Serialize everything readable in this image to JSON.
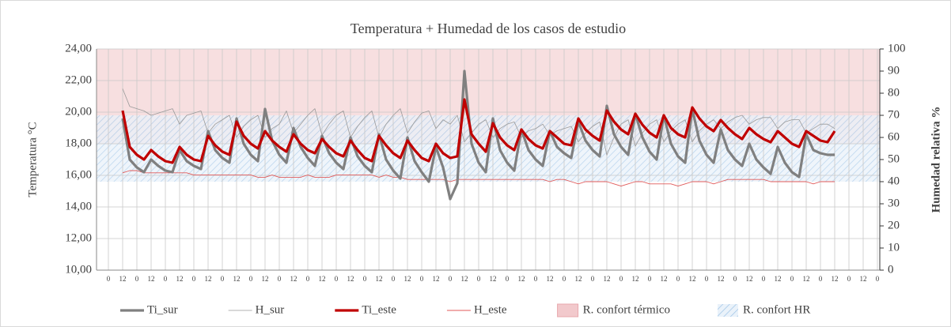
{
  "chart_data": {
    "type": "line",
    "title": "Temperatura + Humedad de los casos de estudio",
    "ylabel": "Temperatura °C",
    "y2label": "Humedad relativa %",
    "xlim": [
      -10,
      650
    ],
    "ylim": [
      10,
      24
    ],
    "y2lim": [
      0,
      100
    ],
    "grid": true,
    "legend": "bottom",
    "yticks": [
      {
        "value": 10,
        "label": "10,00"
      },
      {
        "value": 12,
        "label": "12,00"
      },
      {
        "value": 14,
        "label": "14,00"
      },
      {
        "value": 16,
        "label": "16,00"
      },
      {
        "value": 18,
        "label": "18,00"
      },
      {
        "value": 20,
        "label": "20,00"
      },
      {
        "value": 22,
        "label": "22,00"
      },
      {
        "value": 24,
        "label": "24,00"
      }
    ],
    "y2ticks": [
      0,
      10,
      20,
      30,
      40,
      50,
      60,
      70,
      80,
      90,
      100
    ],
    "xticks": [
      0,
      12,
      {
        "value": 24,
        "label": "0"
      },
      {
        "value": 36,
        "label": "12"
      },
      {
        "value": 48,
        "label": "0"
      },
      {
        "value": 60,
        "label": "12"
      },
      {
        "value": 72,
        "label": "0"
      },
      {
        "value": 84,
        "label": "12"
      },
      {
        "value": 96,
        "label": "0"
      },
      {
        "value": 108,
        "label": "12"
      },
      {
        "value": 120,
        "label": "0"
      },
      {
        "value": 132,
        "label": "12"
      },
      {
        "value": 144,
        "label": "0"
      },
      {
        "value": 156,
        "label": "12"
      },
      {
        "value": 168,
        "label": "0"
      },
      {
        "value": 180,
        "label": "12"
      },
      {
        "value": 192,
        "label": "0"
      },
      {
        "value": 204,
        "label": "12"
      },
      {
        "value": 216,
        "label": "0"
      },
      {
        "value": 228,
        "label": "12"
      },
      {
        "value": 240,
        "label": "0"
      },
      {
        "value": 252,
        "label": "12"
      },
      {
        "value": 264,
        "label": "0"
      },
      {
        "value": 276,
        "label": "12"
      },
      {
        "value": 288,
        "label": "0"
      },
      {
        "value": 300,
        "label": "12"
      },
      {
        "value": 312,
        "label": "0"
      },
      {
        "value": 324,
        "label": "12"
      },
      {
        "value": 336,
        "label": "0"
      },
      {
        "value": 348,
        "label": "12"
      },
      {
        "value": 360,
        "label": "0"
      },
      {
        "value": 372,
        "label": "12"
      },
      {
        "value": 384,
        "label": "0"
      },
      {
        "value": 396,
        "label": "12"
      },
      {
        "value": 408,
        "label": "0"
      },
      {
        "value": 420,
        "label": "12"
      },
      {
        "value": 432,
        "label": "0"
      },
      {
        "value": 444,
        "label": "12"
      },
      {
        "value": 456,
        "label": "0"
      },
      {
        "value": 468,
        "label": "12"
      },
      {
        "value": 480,
        "label": "0"
      },
      {
        "value": 492,
        "label": "12"
      },
      {
        "value": 504,
        "label": "0"
      },
      {
        "value": 516,
        "label": "12"
      },
      {
        "value": 528,
        "label": "0"
      },
      {
        "value": 540,
        "label": "12"
      },
      {
        "value": 552,
        "label": "0"
      },
      {
        "value": 564,
        "label": "12"
      },
      {
        "value": 576,
        "label": "0"
      },
      {
        "value": 588,
        "label": "12"
      },
      {
        "value": 600,
        "label": "0"
      },
      {
        "value": 612,
        "label": "12"
      },
      {
        "value": 624,
        "label": "0"
      },
      {
        "value": 636,
        "label": "12"
      },
      {
        "value": 648,
        "label": "0"
      }
    ],
    "bands": [
      {
        "name": "R. confort térmico",
        "range": [
          18,
          24
        ],
        "color": "#f2c9cc"
      },
      {
        "name": "R. confort HR",
        "range": [
          40,
          70
        ],
        "axis": "y2",
        "color": "#9dc3e6"
      }
    ],
    "x": [
      12,
      18,
      24,
      30,
      36,
      42,
      48,
      54,
      60,
      66,
      72,
      78,
      84,
      90,
      96,
      102,
      108,
      114,
      120,
      126,
      132,
      138,
      144,
      150,
      156,
      162,
      168,
      174,
      180,
      186,
      192,
      198,
      204,
      210,
      216,
      222,
      228,
      234,
      240,
      246,
      252,
      258,
      264,
      270,
      276,
      282,
      288,
      294,
      300,
      306,
      312,
      318,
      324,
      330,
      336,
      342,
      348,
      354,
      360,
      366,
      372,
      378,
      384,
      390,
      396,
      402,
      408,
      414,
      420,
      426,
      432,
      438,
      444,
      450,
      456,
      462,
      468,
      474,
      480,
      486,
      492,
      498,
      504,
      510,
      516,
      522,
      528,
      534,
      540,
      546,
      552,
      558,
      564,
      570,
      576,
      582,
      588,
      594,
      600,
      606,
      612
    ],
    "series": [
      {
        "name": "Ti_sur",
        "color": "#808080",
        "width": 3.2,
        "values": [
          19.6,
          17.0,
          16.5,
          16.2,
          17.0,
          16.6,
          16.3,
          16.2,
          17.6,
          16.9,
          16.6,
          16.4,
          18.8,
          17.6,
          17.1,
          16.8,
          19.6,
          18.0,
          17.3,
          16.9,
          20.2,
          18.2,
          17.3,
          16.8,
          19.0,
          17.8,
          17.1,
          16.6,
          18.5,
          17.4,
          16.8,
          16.4,
          18.4,
          17.2,
          16.6,
          16.2,
          18.6,
          17.0,
          16.3,
          15.8,
          18.4,
          16.9,
          16.2,
          15.6,
          17.8,
          16.5,
          14.5,
          15.5,
          22.6,
          18.0,
          16.8,
          16.2,
          19.6,
          17.6,
          16.8,
          16.3,
          18.9,
          17.6,
          17.0,
          16.6,
          18.8,
          17.8,
          17.4,
          17.1,
          19.4,
          18.2,
          17.6,
          17.2,
          20.4,
          18.6,
          17.8,
          17.3,
          19.9,
          18.4,
          17.5,
          17.0,
          19.8,
          18.0,
          17.2,
          16.8,
          20.2,
          18.2,
          17.3,
          16.8,
          18.9,
          17.6,
          17.0,
          16.6,
          18.0,
          17.0,
          16.5,
          16.1,
          17.8,
          16.8,
          16.2,
          15.9,
          18.6,
          17.6,
          17.4,
          17.3,
          17.3
        ]
      },
      {
        "name": "H_sur",
        "color": "#9a9a9a",
        "width": 0.8,
        "axis": "y2",
        "values": [
          82,
          74,
          73,
          72,
          70,
          71,
          72,
          73,
          66,
          70,
          71,
          72,
          62,
          66,
          68,
          70,
          60,
          65,
          68,
          70,
          60,
          64,
          66,
          72,
          62,
          66,
          70,
          73,
          61,
          66,
          70,
          72,
          60,
          65,
          69,
          72,
          60,
          66,
          70,
          73,
          62,
          67,
          71,
          72,
          64,
          68,
          66,
          70,
          58,
          62,
          66,
          68,
          60,
          64,
          66,
          67,
          60,
          63,
          64,
          66,
          61,
          63,
          64,
          65,
          58,
          62,
          65,
          67,
          52,
          60,
          66,
          68,
          56,
          62,
          66,
          68,
          58,
          63,
          66,
          68,
          58,
          63,
          66,
          68,
          64,
          67,
          69,
          70,
          66,
          68,
          69,
          69,
          64,
          67,
          68,
          68,
          62,
          64,
          66,
          66,
          64
        ]
      },
      {
        "name": "Ti_este",
        "color": "#c00000",
        "width": 3.2,
        "values": [
          20.1,
          17.8,
          17.3,
          17.0,
          17.6,
          17.2,
          16.9,
          16.8,
          17.8,
          17.3,
          17.0,
          16.9,
          18.5,
          17.9,
          17.5,
          17.3,
          19.4,
          18.5,
          18.0,
          17.7,
          18.8,
          18.2,
          17.8,
          17.5,
          18.6,
          18.0,
          17.6,
          17.4,
          18.3,
          17.8,
          17.4,
          17.2,
          18.2,
          17.6,
          17.1,
          16.9,
          18.5,
          17.9,
          17.4,
          17.1,
          18.2,
          17.6,
          17.1,
          16.9,
          18.0,
          17.4,
          17.1,
          17.2,
          20.8,
          18.6,
          18.0,
          17.5,
          19.3,
          18.4,
          17.9,
          17.6,
          18.9,
          18.3,
          17.9,
          17.7,
          18.8,
          18.4,
          18.0,
          17.9,
          19.6,
          18.9,
          18.5,
          18.2,
          20.1,
          19.4,
          18.9,
          18.6,
          19.9,
          19.2,
          18.7,
          18.4,
          19.8,
          19.0,
          18.6,
          18.4,
          20.3,
          19.6,
          19.1,
          18.8,
          19.5,
          19.0,
          18.6,
          18.3,
          19.0,
          18.6,
          18.3,
          18.1,
          18.8,
          18.4,
          18.0,
          17.8,
          18.8,
          18.5,
          18.2,
          18.1,
          18.8
        ]
      },
      {
        "name": "H_este",
        "color": "#e05a5a",
        "width": 0.9,
        "axis": "y2",
        "values": [
          44,
          45,
          45,
          44,
          44,
          44,
          44,
          44,
          44,
          44,
          43,
          43,
          43,
          43,
          43,
          43,
          43,
          43,
          43,
          42,
          42,
          43,
          42,
          42,
          42,
          42,
          43,
          42,
          42,
          42,
          43,
          43,
          43,
          43,
          43,
          43,
          42,
          43,
          42,
          42,
          41,
          41,
          41,
          41,
          41,
          41,
          40,
          41,
          41,
          41,
          41,
          41,
          41,
          41,
          41,
          41,
          41,
          41,
          41,
          41,
          40,
          41,
          41,
          40,
          39,
          40,
          40,
          40,
          40,
          39,
          38,
          39,
          40,
          40,
          39,
          39,
          39,
          39,
          38,
          39,
          40,
          40,
          40,
          39,
          40,
          41,
          41,
          41,
          41,
          41,
          41,
          40,
          40,
          40,
          40,
          40,
          40,
          39,
          40,
          40,
          40
        ]
      }
    ]
  }
}
